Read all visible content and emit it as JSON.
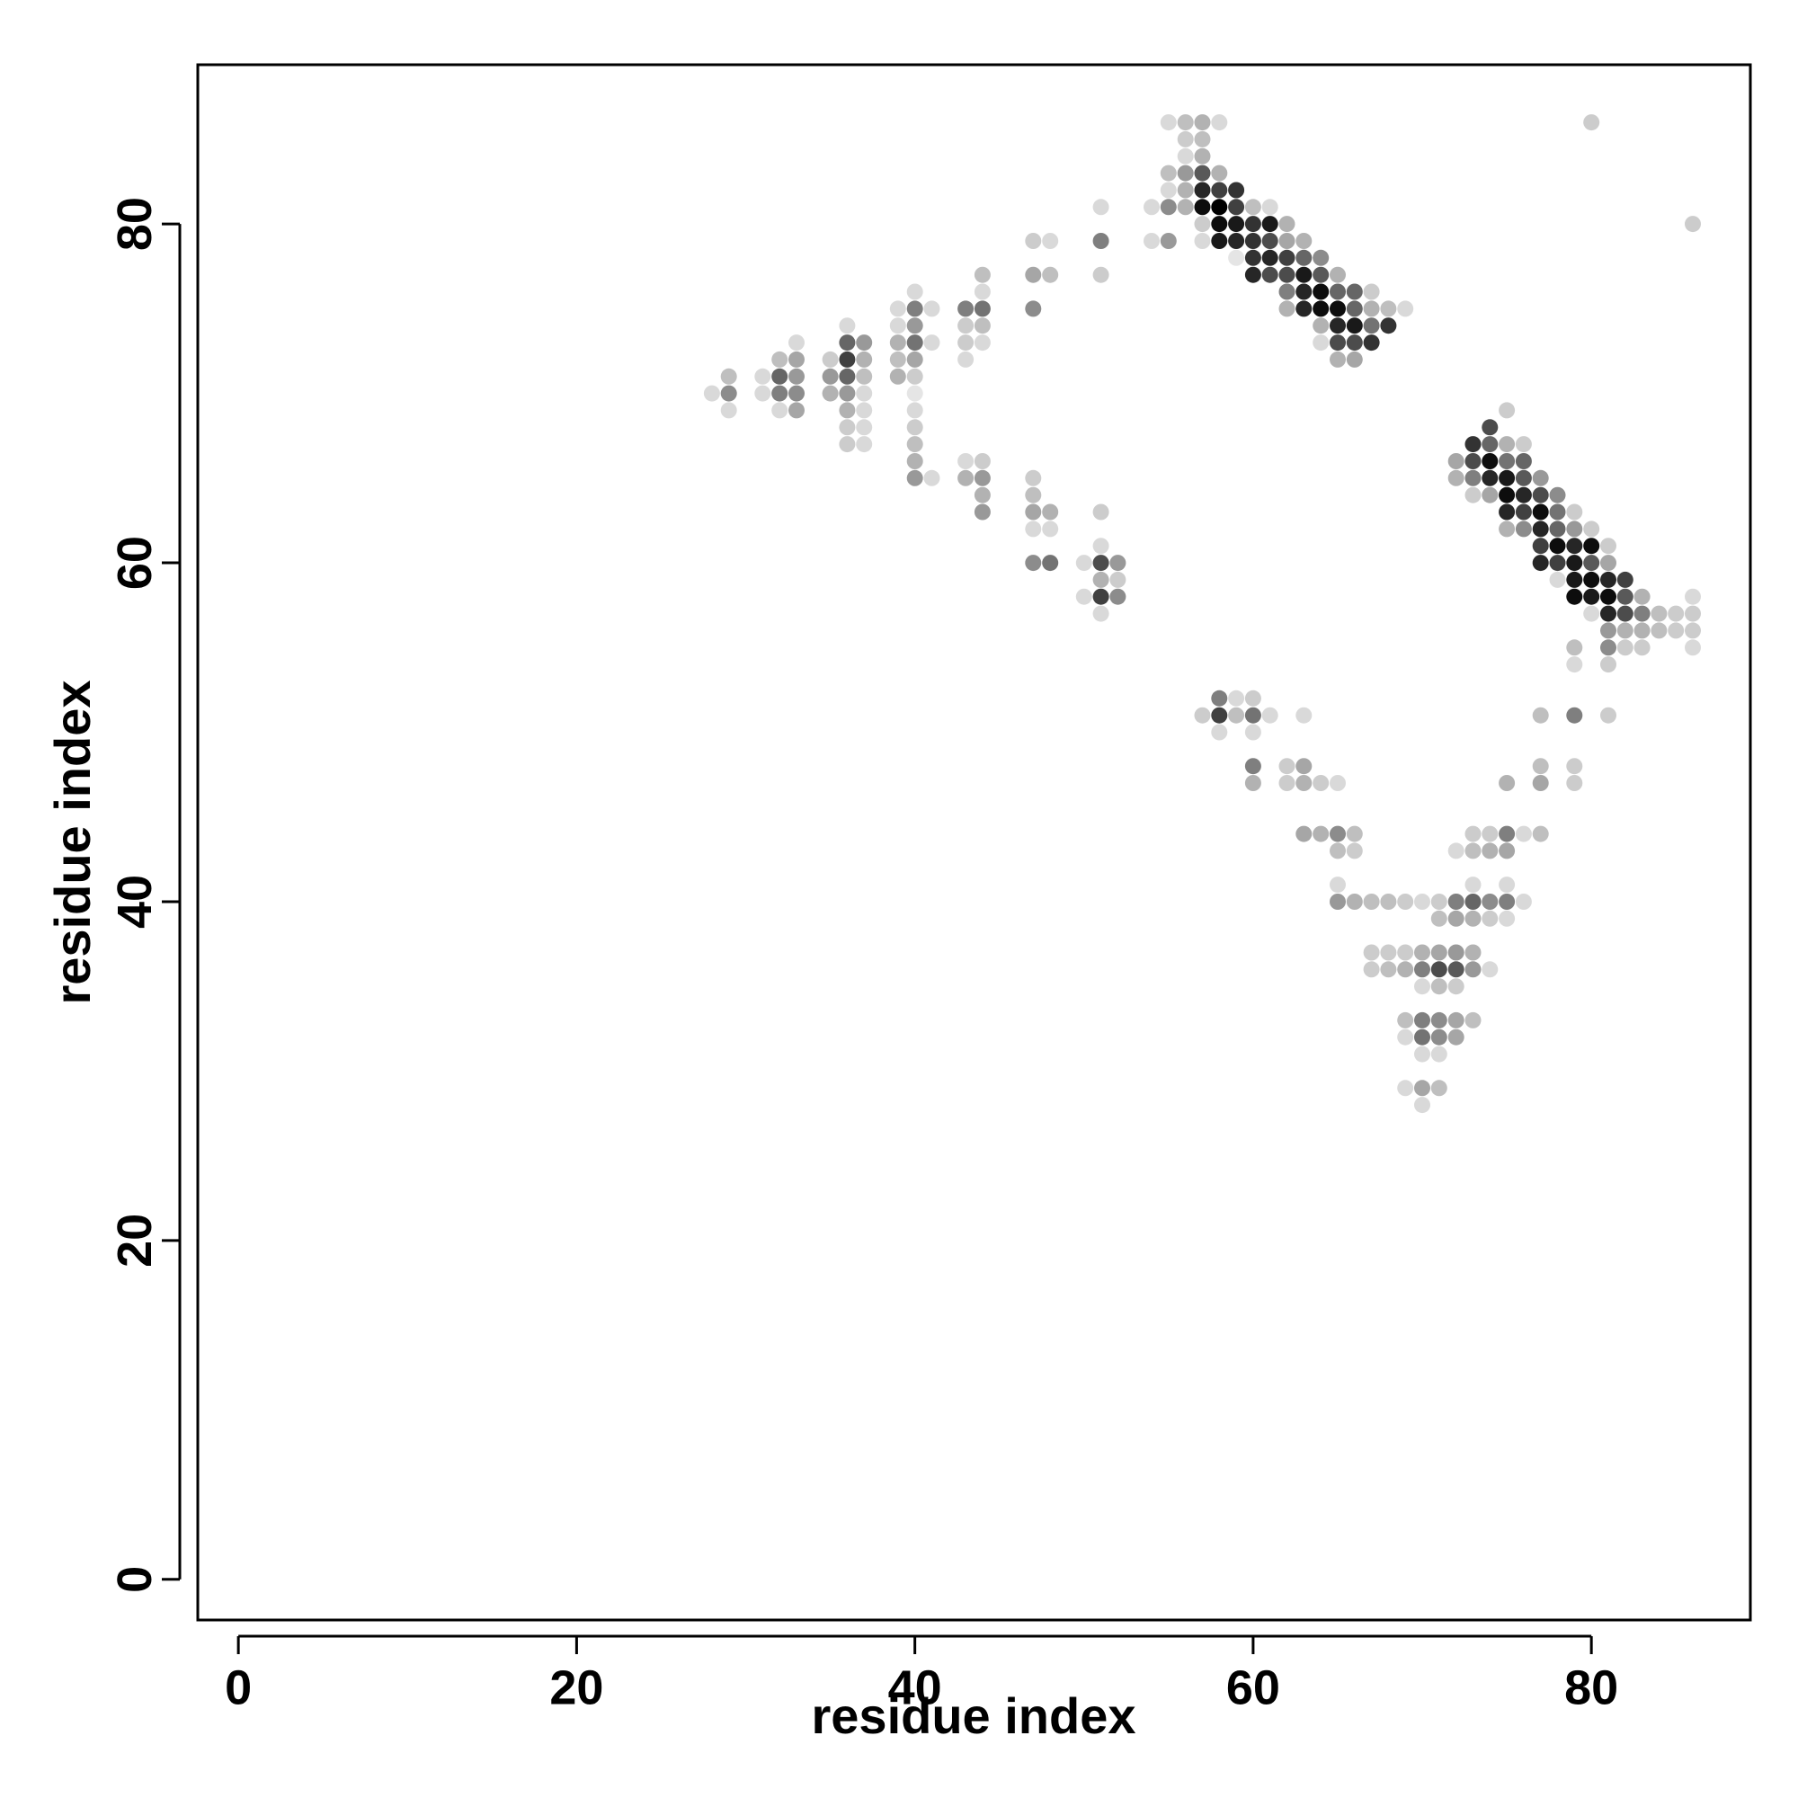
{
  "chart_data": {
    "type": "scatter",
    "title": "",
    "xlabel": "residue index",
    "ylabel": "residue index",
    "xlim": [
      -2.4,
      89.4
    ],
    "ylim": [
      -2.4,
      89.4
    ],
    "xticks": [
      0,
      20,
      40,
      60,
      80
    ],
    "yticks": [
      0,
      20,
      40,
      60,
      80
    ],
    "grid": false,
    "legend": "none",
    "point_color": "#000000",
    "value_meaning": "contact probability (0-1), shown as point darkness",
    "points": [
      [
        55,
        86,
        0.15
      ],
      [
        56,
        86,
        0.25
      ],
      [
        57,
        86,
        0.3
      ],
      [
        58,
        86,
        0.15
      ],
      [
        56,
        85,
        0.2
      ],
      [
        57,
        85,
        0.25
      ],
      [
        56,
        84,
        0.15
      ],
      [
        57,
        84,
        0.3
      ],
      [
        55,
        83,
        0.25
      ],
      [
        56,
        83,
        0.4
      ],
      [
        57,
        83,
        0.65
      ],
      [
        58,
        83,
        0.3
      ],
      [
        55,
        82,
        0.15
      ],
      [
        56,
        82,
        0.3
      ],
      [
        57,
        82,
        0.85
      ],
      [
        58,
        82,
        0.75
      ],
      [
        59,
        82,
        0.8
      ],
      [
        54,
        81,
        0.15
      ],
      [
        55,
        81,
        0.45
      ],
      [
        56,
        81,
        0.3
      ],
      [
        57,
        81,
        0.95
      ],
      [
        58,
        81,
        1.0
      ],
      [
        59,
        81,
        0.75
      ],
      [
        60,
        81,
        0.25
      ],
      [
        61,
        81,
        0.15
      ],
      [
        57,
        80,
        0.2
      ],
      [
        58,
        80,
        0.95
      ],
      [
        59,
        80,
        0.9
      ],
      [
        60,
        80,
        0.8
      ],
      [
        61,
        80,
        0.9
      ],
      [
        62,
        80,
        0.3
      ],
      [
        54,
        79,
        0.15
      ],
      [
        55,
        79,
        0.4
      ],
      [
        57,
        79,
        0.15
      ],
      [
        58,
        79,
        0.9
      ],
      [
        59,
        79,
        0.85
      ],
      [
        60,
        79,
        0.8
      ],
      [
        61,
        79,
        0.7
      ],
      [
        62,
        79,
        0.35
      ],
      [
        63,
        79,
        0.3
      ],
      [
        59,
        78,
        0.1
      ],
      [
        60,
        78,
        0.8
      ],
      [
        61,
        78,
        0.85
      ],
      [
        62,
        78,
        0.75
      ],
      [
        63,
        78,
        0.6
      ],
      [
        64,
        78,
        0.45
      ],
      [
        60,
        77,
        0.85
      ],
      [
        61,
        77,
        0.7
      ],
      [
        62,
        77,
        0.7
      ],
      [
        63,
        77,
        0.9
      ],
      [
        64,
        77,
        0.65
      ],
      [
        65,
        77,
        0.3
      ],
      [
        62,
        76,
        0.5
      ],
      [
        63,
        76,
        0.85
      ],
      [
        64,
        76,
        0.95
      ],
      [
        65,
        76,
        0.6
      ],
      [
        66,
        76,
        0.6
      ],
      [
        67,
        76,
        0.2
      ],
      [
        62,
        75,
        0.3
      ],
      [
        63,
        75,
        0.85
      ],
      [
        64,
        75,
        0.95
      ],
      [
        65,
        75,
        0.95
      ],
      [
        66,
        75,
        0.6
      ],
      [
        67,
        75,
        0.3
      ],
      [
        68,
        75,
        0.25
      ],
      [
        69,
        75,
        0.15
      ],
      [
        64,
        74,
        0.3
      ],
      [
        65,
        74,
        0.85
      ],
      [
        66,
        74,
        0.9
      ],
      [
        67,
        74,
        0.55
      ],
      [
        68,
        74,
        0.8
      ],
      [
        64,
        73,
        0.15
      ],
      [
        65,
        73,
        0.7
      ],
      [
        66,
        73,
        0.7
      ],
      [
        67,
        73,
        0.8
      ],
      [
        65,
        72,
        0.3
      ],
      [
        66,
        72,
        0.35
      ],
      [
        47,
        79,
        0.2
      ],
      [
        48,
        79,
        0.15
      ],
      [
        47,
        77,
        0.35
      ],
      [
        48,
        77,
        0.25
      ],
      [
        47,
        75,
        0.45
      ],
      [
        51,
        81,
        0.15
      ],
      [
        51,
        79,
        0.5
      ],
      [
        51,
        77,
        0.2
      ],
      [
        43,
        75,
        0.5
      ],
      [
        44,
        75,
        0.55
      ],
      [
        44,
        77,
        0.25
      ],
      [
        44,
        76,
        0.15
      ],
      [
        43,
        74,
        0.2
      ],
      [
        44,
        74,
        0.25
      ],
      [
        43,
        73,
        0.2
      ],
      [
        44,
        73,
        0.15
      ],
      [
        43,
        72,
        0.15
      ],
      [
        39,
        75,
        0.15
      ],
      [
        40,
        75,
        0.5
      ],
      [
        41,
        75,
        0.15
      ],
      [
        40,
        76,
        0.15
      ],
      [
        39,
        74,
        0.15
      ],
      [
        40,
        74,
        0.4
      ],
      [
        39,
        73,
        0.3
      ],
      [
        40,
        73,
        0.55
      ],
      [
        41,
        73,
        0.15
      ],
      [
        39,
        72,
        0.25
      ],
      [
        40,
        72,
        0.35
      ],
      [
        39,
        71,
        0.3
      ],
      [
        40,
        71,
        0.2
      ],
      [
        40,
        70,
        0.1
      ],
      [
        40,
        69,
        0.15
      ],
      [
        40,
        68,
        0.2
      ],
      [
        40,
        67,
        0.25
      ],
      [
        40,
        66,
        0.3
      ],
      [
        40,
        65,
        0.4
      ],
      [
        41,
        65,
        0.15
      ],
      [
        36,
        74,
        0.15
      ],
      [
        36,
        73,
        0.6
      ],
      [
        37,
        73,
        0.4
      ],
      [
        35,
        72,
        0.2
      ],
      [
        36,
        72,
        0.75
      ],
      [
        37,
        72,
        0.3
      ],
      [
        35,
        71,
        0.4
      ],
      [
        36,
        71,
        0.6
      ],
      [
        37,
        71,
        0.25
      ],
      [
        35,
        70,
        0.3
      ],
      [
        36,
        70,
        0.4
      ],
      [
        37,
        70,
        0.15
      ],
      [
        36,
        69,
        0.3
      ],
      [
        37,
        69,
        0.15
      ],
      [
        36,
        68,
        0.2
      ],
      [
        37,
        68,
        0.15
      ],
      [
        36,
        67,
        0.2
      ],
      [
        37,
        67,
        0.15
      ],
      [
        33,
        73,
        0.15
      ],
      [
        32,
        72,
        0.25
      ],
      [
        33,
        72,
        0.35
      ],
      [
        31,
        71,
        0.15
      ],
      [
        32,
        71,
        0.6
      ],
      [
        33,
        71,
        0.4
      ],
      [
        31,
        70,
        0.15
      ],
      [
        32,
        70,
        0.5
      ],
      [
        33,
        70,
        0.45
      ],
      [
        32,
        69,
        0.15
      ],
      [
        33,
        69,
        0.35
      ],
      [
        28,
        70,
        0.15
      ],
      [
        29,
        70,
        0.45
      ],
      [
        29,
        71,
        0.25
      ],
      [
        29,
        69,
        0.15
      ],
      [
        43,
        65,
        0.3
      ],
      [
        44,
        65,
        0.4
      ],
      [
        43,
        66,
        0.15
      ],
      [
        44,
        66,
        0.2
      ],
      [
        44,
        64,
        0.3
      ],
      [
        44,
        63,
        0.4
      ],
      [
        47,
        65,
        0.2
      ],
      [
        47,
        64,
        0.25
      ],
      [
        47,
        63,
        0.35
      ],
      [
        48,
        63,
        0.3
      ],
      [
        47,
        62,
        0.15
      ],
      [
        48,
        62,
        0.15
      ],
      [
        47,
        60,
        0.45
      ],
      [
        48,
        60,
        0.55
      ],
      [
        51,
        63,
        0.2
      ],
      [
        51,
        61,
        0.15
      ],
      [
        50,
        60,
        0.15
      ],
      [
        51,
        60,
        0.7
      ],
      [
        52,
        60,
        0.4
      ],
      [
        51,
        59,
        0.3
      ],
      [
        52,
        59,
        0.2
      ],
      [
        50,
        58,
        0.15
      ],
      [
        51,
        58,
        0.75
      ],
      [
        52,
        58,
        0.45
      ],
      [
        51,
        57,
        0.15
      ],
      [
        57,
        51,
        0.2
      ],
      [
        58,
        51,
        0.75
      ],
      [
        59,
        51,
        0.25
      ],
      [
        60,
        51,
        0.55
      ],
      [
        61,
        51,
        0.15
      ],
      [
        58,
        52,
        0.5
      ],
      [
        59,
        52,
        0.15
      ],
      [
        60,
        52,
        0.2
      ],
      [
        58,
        50,
        0.15
      ],
      [
        60,
        50,
        0.15
      ],
      [
        60,
        48,
        0.5
      ],
      [
        60,
        47,
        0.3
      ],
      [
        62,
        48,
        0.2
      ],
      [
        63,
        48,
        0.35
      ],
      [
        62,
        47,
        0.2
      ],
      [
        63,
        47,
        0.3
      ],
      [
        64,
        47,
        0.2
      ],
      [
        65,
        47,
        0.15
      ],
      [
        63,
        51,
        0.15
      ],
      [
        63,
        44,
        0.35
      ],
      [
        64,
        44,
        0.3
      ],
      [
        65,
        44,
        0.45
      ],
      [
        66,
        44,
        0.25
      ],
      [
        65,
        43,
        0.25
      ],
      [
        66,
        43,
        0.2
      ],
      [
        65,
        41,
        0.15
      ],
      [
        65,
        40,
        0.4
      ],
      [
        66,
        40,
        0.3
      ],
      [
        67,
        40,
        0.25
      ],
      [
        68,
        40,
        0.25
      ],
      [
        69,
        40,
        0.2
      ],
      [
        70,
        40,
        0.15
      ],
      [
        71,
        40,
        0.2
      ],
      [
        72,
        40,
        0.5
      ],
      [
        73,
        40,
        0.6
      ],
      [
        74,
        40,
        0.45
      ],
      [
        75,
        40,
        0.5
      ],
      [
        76,
        40,
        0.15
      ],
      [
        71,
        39,
        0.25
      ],
      [
        72,
        39,
        0.35
      ],
      [
        73,
        39,
        0.3
      ],
      [
        74,
        39,
        0.2
      ],
      [
        75,
        39,
        0.15
      ],
      [
        73,
        41,
        0.15
      ],
      [
        75,
        41,
        0.15
      ],
      [
        72,
        43,
        0.15
      ],
      [
        73,
        43,
        0.25
      ],
      [
        74,
        43,
        0.3
      ],
      [
        75,
        43,
        0.35
      ],
      [
        73,
        44,
        0.2
      ],
      [
        74,
        44,
        0.2
      ],
      [
        75,
        44,
        0.5
      ],
      [
        76,
        44,
        0.15
      ],
      [
        77,
        44,
        0.25
      ],
      [
        75,
        47,
        0.3
      ],
      [
        77,
        47,
        0.35
      ],
      [
        77,
        48,
        0.25
      ],
      [
        79,
        47,
        0.2
      ],
      [
        79,
        48,
        0.2
      ],
      [
        77,
        51,
        0.25
      ],
      [
        79,
        51,
        0.5
      ],
      [
        81,
        51,
        0.2
      ],
      [
        67,
        37,
        0.2
      ],
      [
        68,
        37,
        0.2
      ],
      [
        69,
        37,
        0.2
      ],
      [
        70,
        37,
        0.3
      ],
      [
        71,
        37,
        0.35
      ],
      [
        72,
        37,
        0.4
      ],
      [
        73,
        37,
        0.3
      ],
      [
        67,
        36,
        0.2
      ],
      [
        68,
        36,
        0.25
      ],
      [
        69,
        36,
        0.3
      ],
      [
        70,
        36,
        0.5
      ],
      [
        71,
        36,
        0.7
      ],
      [
        72,
        36,
        0.65
      ],
      [
        73,
        36,
        0.4
      ],
      [
        74,
        36,
        0.15
      ],
      [
        70,
        35,
        0.15
      ],
      [
        71,
        35,
        0.25
      ],
      [
        72,
        35,
        0.2
      ],
      [
        69,
        33,
        0.25
      ],
      [
        70,
        33,
        0.5
      ],
      [
        71,
        33,
        0.45
      ],
      [
        72,
        33,
        0.35
      ],
      [
        73,
        33,
        0.25
      ],
      [
        69,
        32,
        0.15
      ],
      [
        70,
        32,
        0.55
      ],
      [
        71,
        32,
        0.45
      ],
      [
        72,
        32,
        0.35
      ],
      [
        70,
        31,
        0.15
      ],
      [
        71,
        31,
        0.15
      ],
      [
        69,
        29,
        0.15
      ],
      [
        70,
        29,
        0.35
      ],
      [
        71,
        29,
        0.25
      ],
      [
        70,
        28,
        0.15
      ],
      [
        74,
        68,
        0.7
      ],
      [
        75,
        69,
        0.2
      ],
      [
        73,
        67,
        0.8
      ],
      [
        74,
        67,
        0.6
      ],
      [
        75,
        67,
        0.3
      ],
      [
        76,
        67,
        0.2
      ],
      [
        72,
        66,
        0.35
      ],
      [
        73,
        66,
        0.7
      ],
      [
        74,
        66,
        0.95
      ],
      [
        75,
        66,
        0.55
      ],
      [
        76,
        66,
        0.6
      ],
      [
        72,
        65,
        0.3
      ],
      [
        73,
        65,
        0.5
      ],
      [
        74,
        65,
        0.85
      ],
      [
        75,
        65,
        0.9
      ],
      [
        76,
        65,
        0.65
      ],
      [
        77,
        65,
        0.4
      ],
      [
        73,
        64,
        0.2
      ],
      [
        74,
        64,
        0.35
      ],
      [
        75,
        64,
        0.95
      ],
      [
        76,
        64,
        0.85
      ],
      [
        77,
        64,
        0.7
      ],
      [
        78,
        64,
        0.45
      ],
      [
        75,
        63,
        0.85
      ],
      [
        76,
        63,
        0.75
      ],
      [
        77,
        63,
        0.95
      ],
      [
        78,
        63,
        0.55
      ],
      [
        79,
        63,
        0.2
      ],
      [
        75,
        62,
        0.3
      ],
      [
        76,
        62,
        0.45
      ],
      [
        77,
        62,
        0.85
      ],
      [
        78,
        62,
        0.6
      ],
      [
        79,
        62,
        0.4
      ],
      [
        80,
        62,
        0.2
      ],
      [
        77,
        61,
        0.75
      ],
      [
        78,
        61,
        0.95
      ],
      [
        79,
        61,
        0.85
      ],
      [
        80,
        61,
        0.95
      ],
      [
        81,
        61,
        0.2
      ],
      [
        77,
        60,
        0.85
      ],
      [
        78,
        60,
        0.75
      ],
      [
        79,
        60,
        0.9
      ],
      [
        80,
        60,
        0.65
      ],
      [
        81,
        60,
        0.35
      ],
      [
        78,
        59,
        0.15
      ],
      [
        79,
        59,
        0.9
      ],
      [
        80,
        59,
        0.95
      ],
      [
        81,
        59,
        0.85
      ],
      [
        82,
        59,
        0.75
      ],
      [
        79,
        58,
        0.95
      ],
      [
        80,
        58,
        0.9
      ],
      [
        81,
        58,
        0.95
      ],
      [
        82,
        58,
        0.65
      ],
      [
        83,
        58,
        0.3
      ],
      [
        80,
        57,
        0.15
      ],
      [
        81,
        57,
        0.85
      ],
      [
        82,
        57,
        0.7
      ],
      [
        83,
        57,
        0.5
      ],
      [
        84,
        57,
        0.25
      ],
      [
        85,
        57,
        0.2
      ],
      [
        86,
        57,
        0.2
      ],
      [
        81,
        56,
        0.4
      ],
      [
        82,
        56,
        0.3
      ],
      [
        83,
        56,
        0.3
      ],
      [
        84,
        56,
        0.25
      ],
      [
        85,
        56,
        0.2
      ],
      [
        86,
        56,
        0.2
      ],
      [
        79,
        55,
        0.25
      ],
      [
        81,
        55,
        0.45
      ],
      [
        82,
        55,
        0.2
      ],
      [
        83,
        55,
        0.2
      ],
      [
        86,
        55,
        0.15
      ],
      [
        79,
        54,
        0.15
      ],
      [
        81,
        54,
        0.2
      ],
      [
        86,
        58,
        0.15
      ],
      [
        80,
        86,
        0.2
      ],
      [
        86,
        80,
        0.2
      ]
    ]
  }
}
